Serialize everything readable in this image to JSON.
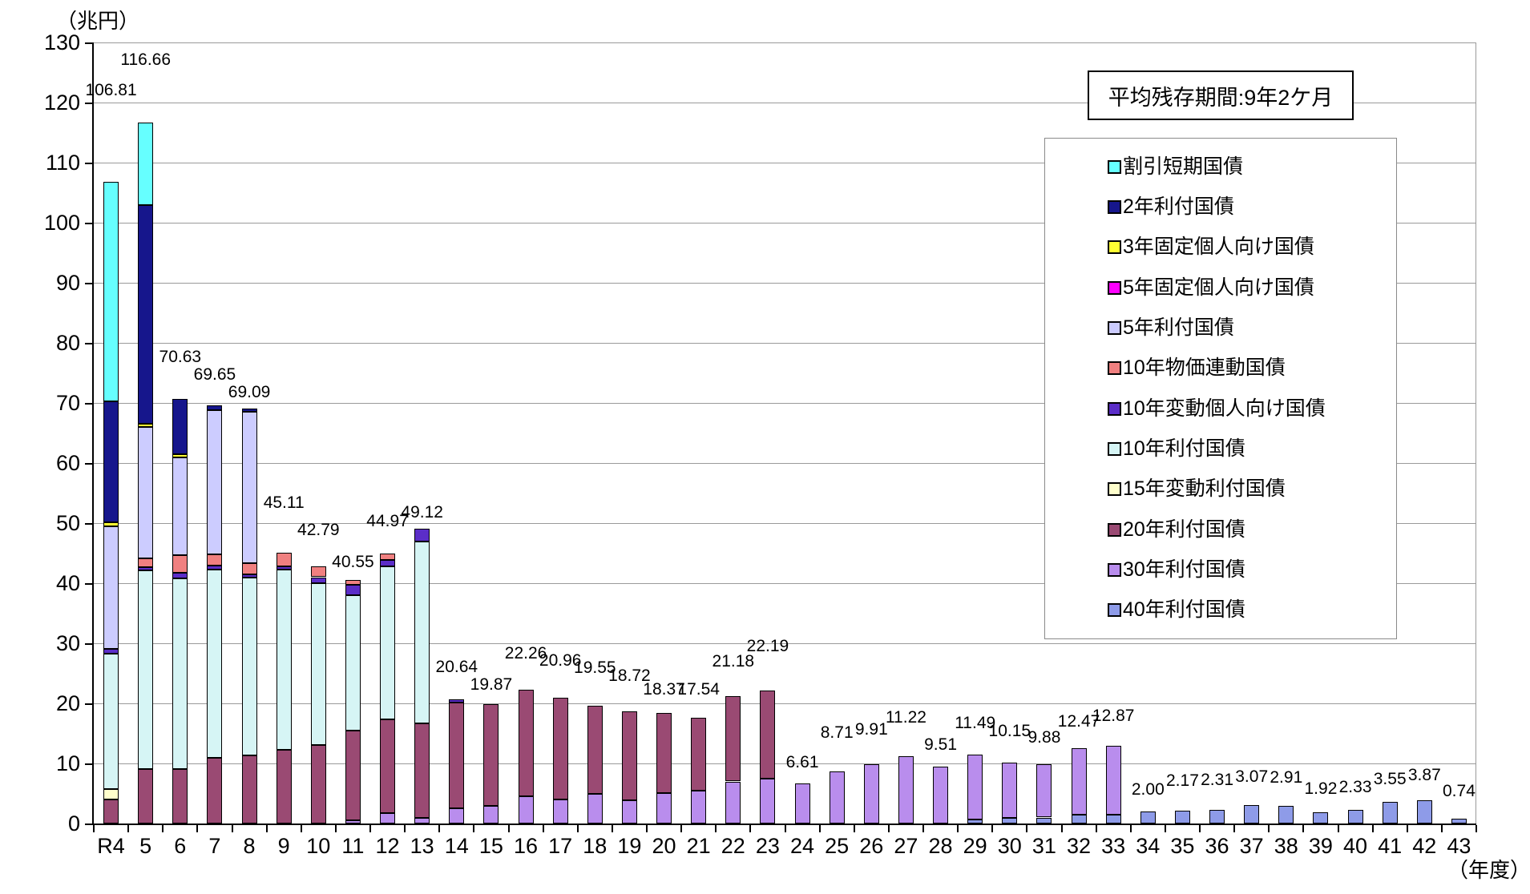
{
  "y_axis_unit": "（兆円）",
  "x_axis_unit": "（年度）",
  "annotation_box": {
    "text": "平均残存期間:9年2ケ月"
  },
  "chart_data": {
    "type": "bar",
    "stacked": true,
    "title": "",
    "xlabel": "年度",
    "ylabel": "兆円",
    "grid": true,
    "legend_position": "inside-right",
    "y_axis": {
      "min": 0,
      "max": 130,
      "step": 10
    },
    "categories": [
      "R4",
      "5",
      "6",
      "7",
      "8",
      "9",
      "10",
      "11",
      "12",
      "13",
      "14",
      "15",
      "16",
      "17",
      "18",
      "19",
      "20",
      "21",
      "22",
      "23",
      "24",
      "25",
      "26",
      "27",
      "28",
      "29",
      "30",
      "31",
      "32",
      "33",
      "34",
      "35",
      "36",
      "37",
      "38",
      "39",
      "40",
      "41",
      "42",
      "43"
    ],
    "total_labels": [
      "106.81",
      "116.66",
      "70.63",
      "69.65",
      "69.09",
      "45.11",
      "42.79",
      "40.55",
      "44.97",
      "49.12",
      "20.64",
      "19.87",
      "22.26",
      "20.96",
      "19.55",
      "18.72",
      "18.37",
      "17.54",
      "21.18",
      "22.19",
      "6.61",
      "8.71",
      "9.91",
      "11.22",
      "9.51",
      "11.49",
      "10.15",
      "9.88",
      "12.47",
      "12.87",
      "2.00",
      "2.17",
      "2.31",
      "3.07",
      "2.91",
      "1.92",
      "2.33",
      "3.55",
      "3.87",
      "0.74"
    ],
    "series": [
      {
        "name": "割引短期国債",
        "color": "#66FFFF",
        "values": [
          36.5,
          13.76,
          0,
          0,
          0,
          0,
          0,
          0,
          0,
          0,
          0,
          0,
          0,
          0,
          0,
          0,
          0,
          0,
          0,
          0,
          0,
          0,
          0,
          0,
          0,
          0,
          0,
          0,
          0,
          0,
          0,
          0,
          0,
          0,
          0,
          0,
          0,
          0,
          0,
          0
        ]
      },
      {
        "name": "2年利付国債",
        "color": "#16168C",
        "values": [
          20.2,
          36.4,
          9.13,
          0.85,
          0.59,
          0,
          0,
          0,
          0,
          0,
          0,
          0,
          0,
          0,
          0,
          0,
          0,
          0,
          0,
          0,
          0,
          0,
          0,
          0,
          0,
          0,
          0,
          0,
          0,
          0,
          0,
          0,
          0,
          0,
          0,
          0,
          0,
          0,
          0,
          0
        ]
      },
      {
        "name": "3年固定個人向け国債",
        "color": "#FFFF33",
        "values": [
          0.6,
          0.5,
          0.5,
          0,
          0,
          0,
          0,
          0,
          0,
          0,
          0,
          0,
          0,
          0,
          0,
          0,
          0,
          0,
          0,
          0,
          0,
          0,
          0,
          0,
          0,
          0,
          0,
          0,
          0,
          0,
          0,
          0,
          0,
          0,
          0,
          0,
          0,
          0,
          0,
          0
        ]
      },
      {
        "name": "5年固定個人向け国債",
        "color": "#FF00FF",
        "values": [
          0,
          0,
          0,
          0,
          0,
          0,
          0,
          0,
          0,
          0,
          0,
          0,
          0,
          0,
          0,
          0,
          0,
          0,
          0,
          0,
          0,
          0,
          0,
          0,
          0,
          0,
          0,
          0,
          0,
          0,
          0,
          0,
          0,
          0,
          0,
          0,
          0,
          0,
          0,
          0
        ]
      },
      {
        "name": "5年利付国債",
        "color": "#CCCCFF",
        "values": [
          20.4,
          21.8,
          16.3,
          24.0,
          25.2,
          0,
          0,
          0,
          0,
          0,
          0,
          0,
          0,
          0,
          0,
          0,
          0,
          0,
          0,
          0,
          0,
          0,
          0,
          0,
          0,
          0,
          0,
          0,
          0,
          0,
          0,
          0,
          0,
          0,
          0,
          0,
          0,
          0,
          0,
          0
        ]
      },
      {
        "name": "10年物価連動国債",
        "color": "#F08080",
        "values": [
          0,
          1.5,
          3.0,
          1.9,
          1.8,
          2.3,
          1.79,
          0.75,
          1.07,
          0,
          0,
          0,
          0,
          0,
          0,
          0,
          0,
          0,
          0,
          0,
          0,
          0,
          0,
          0,
          0,
          0,
          0,
          0,
          0,
          0,
          0,
          0,
          0,
          0,
          0,
          0,
          0,
          0,
          0,
          0
        ]
      },
      {
        "name": "10年変動個人向け国債",
        "color": "#5B2DC8",
        "values": [
          0.9,
          0.6,
          0.9,
          0.6,
          0.5,
          0.5,
          1.0,
          1.8,
          1.1,
          2.22,
          0.54,
          0,
          0,
          0,
          0,
          0,
          0,
          0,
          0,
          0,
          0,
          0,
          0,
          0,
          0,
          0,
          0,
          0,
          0,
          0,
          0,
          0,
          0,
          0,
          0,
          0,
          0,
          0,
          0,
          0
        ]
      },
      {
        "name": "10年利付国債",
        "color": "#D6F5F5",
        "values": [
          22.5,
          33.0,
          31.7,
          31.4,
          29.7,
          30.0,
          26.9,
          22.5,
          25.5,
          30.2,
          0,
          0,
          0,
          0,
          0,
          0,
          0,
          0,
          0,
          0,
          0,
          0,
          0,
          0,
          0,
          0,
          0,
          0,
          0,
          0,
          0,
          0,
          0,
          0,
          0,
          0,
          0,
          0,
          0,
          0
        ]
      },
      {
        "name": "15年変動利付国債",
        "color": "#FFFFCC",
        "values": [
          1.71,
          0,
          0,
          0,
          0,
          0,
          0,
          0,
          0,
          0,
          0,
          0,
          0,
          0,
          0,
          0,
          0,
          0,
          0,
          0,
          0,
          0,
          0,
          0,
          0,
          0,
          0,
          0,
          0,
          0,
          0,
          0,
          0,
          0,
          0,
          0,
          0,
          0,
          0,
          0
        ]
      },
      {
        "name": "20年利付国債",
        "color": "#9A4A73",
        "values": [
          4.0,
          9.1,
          9.1,
          10.9,
          11.3,
          12.31,
          13.1,
          15.0,
          15.5,
          15.7,
          17.5,
          16.97,
          17.76,
          16.96,
          14.65,
          14.82,
          13.27,
          12.04,
          14.18,
          14.69,
          0,
          0,
          0,
          0,
          0,
          0,
          0,
          0,
          0,
          0,
          0,
          0,
          0,
          0,
          0,
          0,
          0,
          0,
          0,
          0
        ]
      },
      {
        "name": "30年利付国債",
        "color": "#B98DED",
        "values": [
          0,
          0,
          0,
          0,
          0,
          0,
          0,
          0.5,
          1.8,
          1.0,
          2.6,
          2.9,
          4.5,
          4.0,
          4.9,
          3.9,
          5.1,
          5.5,
          7.0,
          7.5,
          6.61,
          8.71,
          9.91,
          11.22,
          9.51,
          10.79,
          9.25,
          8.88,
          10.97,
          11.37,
          0,
          0,
          0,
          0,
          0,
          0,
          0,
          0,
          0,
          0
        ]
      },
      {
        "name": "40年利付国債",
        "color": "#8E9BE8",
        "values": [
          0,
          0,
          0,
          0,
          0,
          0,
          0,
          0,
          0,
          0,
          0,
          0,
          0,
          0,
          0,
          0,
          0,
          0,
          0,
          0,
          0,
          0,
          0,
          0,
          0,
          0.7,
          0.9,
          1.0,
          1.5,
          1.5,
          2.0,
          2.17,
          2.31,
          3.07,
          2.91,
          1.92,
          2.33,
          3.55,
          3.87,
          0.74
        ]
      }
    ],
    "label_offsets": [
      102,
      66,
      40,
      26,
      8,
      50,
      33,
      10,
      28,
      8,
      28,
      12,
      33,
      34,
      35,
      32,
      17,
      23,
      31,
      43,
      14,
      36,
      31,
      36,
      15,
      27,
      27,
      21,
      21,
      25,
      15,
      25,
      25,
      23,
      23,
      17,
      16,
      16,
      19,
      22
    ]
  }
}
